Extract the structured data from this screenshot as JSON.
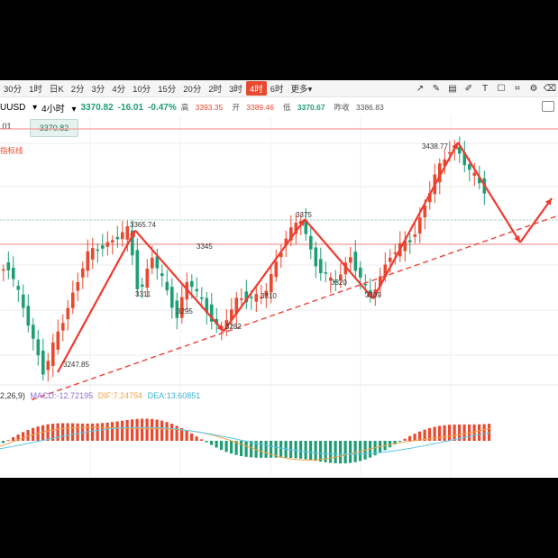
{
  "toolbar": {
    "timeframes": [
      "30分",
      "1时",
      "日K",
      "2分",
      "3分",
      "4分",
      "10分",
      "15分",
      "20分",
      "2时",
      "3时",
      "4时",
      "6时",
      "更多▾"
    ],
    "active_index": 11
  },
  "tools_icons": [
    "line-tool-icon",
    "pen-tool-icon",
    "gallery-icon",
    "brush-icon",
    "text-tool-icon",
    "checkbox-icon",
    "crop-icon",
    "settings-icon",
    "eraser-icon"
  ],
  "info": {
    "symbol": "UUSD",
    "period": "4小时",
    "price": "3370.82",
    "change": "-16.01",
    "change_pct": "-0.47%",
    "high_label": "高",
    "high": "3393.35",
    "open_label": "开",
    "open": "3389.46",
    "low_label": "低",
    "low": "3370.67",
    "prev_label": "昨收",
    "prev": "3386.83"
  },
  "price_input": ".01",
  "price_tag": "3370.82",
  "indicator_label": "指标线",
  "macd": {
    "params": "2,26,9)",
    "macd_label": "MACD:",
    "macd_value": "-12.72195",
    "dif_label": "DIF:",
    "dif_value": "7.24754",
    "dea_label": "DEA:",
    "dea_value": "13.60851"
  },
  "colors": {
    "up": "#e8492f",
    "down": "#1f9e76",
    "dif": "#f5a14b",
    "dea": "#5cc6e6",
    "macd_label": "#8b6cd9",
    "arrow": "#ee3b30"
  },
  "chart_data": {
    "type": "candlestick",
    "annotations": [
      {
        "label": "3247.85",
        "role": "low"
      },
      {
        "label": "3365.74",
        "role": "high"
      },
      {
        "label": "3311",
        "role": "low"
      },
      {
        "label": "3345",
        "role": "high"
      },
      {
        "label": "3295",
        "role": "low"
      },
      {
        "label": "3282",
        "role": "low"
      },
      {
        "label": "3310",
        "role": "low"
      },
      {
        "label": "3375",
        "role": "high"
      },
      {
        "label": "3320",
        "role": "low"
      },
      {
        "label": "3309",
        "role": "low"
      },
      {
        "label": "3438.77",
        "role": "high"
      }
    ],
    "wave_path": [
      3247.85,
      3365.74,
      3282,
      3375,
      3309,
      3438.77
    ],
    "projection": "down then up",
    "trendline": "dashed ascending support from 3247.85 through 3282 and 3309",
    "horizontal_levels": [
      "resistance near 3438.77",
      "support near 3345"
    ]
  }
}
